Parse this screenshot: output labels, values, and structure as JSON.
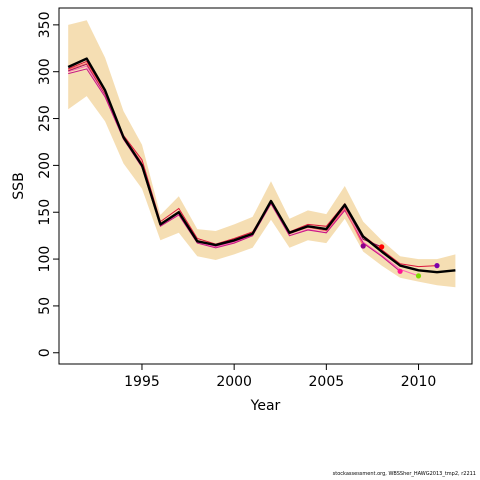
{
  "chart_data": {
    "type": "line",
    "title": "",
    "xlabel": "Year",
    "ylabel": "SSB",
    "xlim": [
      1990.5,
      2012.9
    ],
    "ylim": [
      -12,
      368
    ],
    "xticks": [
      1995,
      2000,
      2005,
      2010
    ],
    "yticks": [
      0,
      50,
      100,
      150,
      200,
      250,
      300,
      350
    ],
    "grid": false,
    "legend": "none",
    "colors": {
      "band": "#F5DEB3",
      "main": "#000000",
      "retro": [
        "#DC143C",
        "#FF69B4",
        "#C71585",
        "#8B0A50",
        "#FF6A6A"
      ],
      "terminal_points": [
        "#8B008B",
        "#FF0000",
        "#FF1493",
        "#7FDD00",
        "#7B00AA"
      ]
    },
    "band": {
      "x": [
        1991,
        1992,
        1993,
        1994,
        1995,
        1996,
        1997,
        1998,
        1999,
        2000,
        2001,
        2002,
        2003,
        2004,
        2005,
        2006,
        2007,
        2008,
        2009,
        2010,
        2011,
        2012
      ],
      "upper": [
        350,
        355,
        315,
        258,
        222,
        147,
        167,
        132,
        130,
        137,
        145,
        183,
        143,
        152,
        148,
        178,
        140,
        120,
        103,
        100,
        100,
        105
      ],
      "lower": [
        260,
        274,
        247,
        202,
        175,
        120,
        128,
        103,
        99,
        105,
        112,
        142,
        112,
        120,
        117,
        143,
        108,
        93,
        80,
        76,
        72,
        70
      ]
    },
    "series": [
      {
        "x": [
          1991,
          1992,
          1993,
          1994,
          1995,
          1996,
          1997,
          1998,
          1999,
          2000,
          2001,
          2002,
          2003,
          2004,
          2005,
          2006,
          2007,
          2008,
          2009,
          2010,
          2011,
          2012
        ],
        "values": [
          305,
          314,
          280,
          230,
          200,
          137,
          150,
          119,
          115,
          120,
          127,
          162,
          128,
          135,
          132,
          158,
          124,
          108,
          93,
          88,
          86,
          88
        ]
      },
      {
        "x": [
          1991,
          1992,
          1993,
          1994,
          1995,
          1996,
          1997,
          1998,
          1999,
          2000,
          2001,
          2002,
          2003,
          2004,
          2005,
          2006,
          2007,
          2008,
          2009,
          2010,
          2011
        ],
        "values": [
          303,
          311,
          277,
          232,
          206,
          140,
          154,
          122,
          116,
          122,
          129,
          162,
          129,
          137,
          135,
          159,
          125,
          110,
          95,
          92,
          93
        ]
      },
      {
        "x": [
          1991,
          1992,
          1993,
          1994,
          1995,
          1996,
          1997,
          1998,
          1999,
          2000,
          2001,
          2002,
          2003,
          2004,
          2005,
          2006,
          2007,
          2008,
          2009,
          2010
        ],
        "values": [
          300,
          306,
          275,
          229,
          200,
          136,
          148,
          118,
          113,
          118,
          126,
          160,
          125,
          132,
          128,
          153,
          118,
          104,
          89,
          82
        ]
      },
      {
        "x": [
          1991,
          1992,
          1993,
          1994,
          1995,
          1996,
          1997,
          1998,
          1999,
          2000,
          2001,
          2002,
          2003,
          2004,
          2005,
          2006,
          2007,
          2008,
          2009
        ],
        "values": [
          298,
          303,
          273,
          228,
          198,
          135,
          147,
          117,
          112,
          117,
          125,
          159,
          125,
          131,
          128,
          152,
          117,
          103,
          87
        ]
      },
      {
        "x": [
          1991,
          1992,
          1993,
          1994,
          1995,
          1996,
          1997,
          1998,
          1999,
          2000,
          2001,
          2002,
          2003,
          2004,
          2005,
          2006,
          2007,
          2008
        ],
        "values": [
          301,
          308,
          276,
          230,
          202,
          137,
          150,
          119,
          114,
          119,
          126,
          161,
          127,
          134,
          131,
          156,
          121,
          113
        ]
      },
      {
        "x": [
          1991,
          1992,
          1993,
          1994,
          1995,
          1996,
          1997,
          1998,
          1999,
          2000,
          2001,
          2002,
          2003,
          2004,
          2005,
          2006,
          2007
        ],
        "values": [
          302,
          309,
          277,
          231,
          203,
          138,
          151,
          120,
          115,
          120,
          127,
          161,
          127,
          134,
          130,
          154,
          114
        ]
      }
    ],
    "terminal_points": [
      {
        "x": 2007,
        "y": 114
      },
      {
        "x": 2008,
        "y": 113
      },
      {
        "x": 2009,
        "y": 87
      },
      {
        "x": 2010,
        "y": 82
      },
      {
        "x": 2011,
        "y": 93
      }
    ]
  },
  "credit": "stockassessment.org, WBSSher_HAWG2013_tmp2, r2211"
}
